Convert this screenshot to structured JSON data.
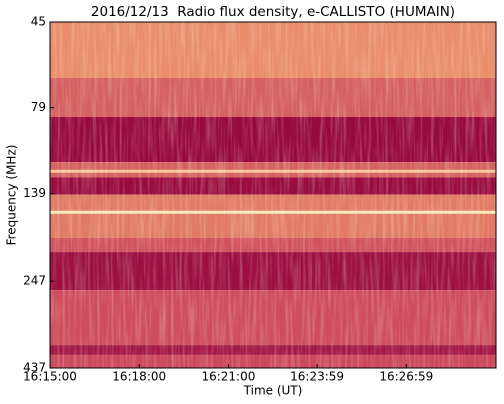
{
  "chart_data": {
    "type": "spectrogram",
    "title": "2016/12/13  Radio flux density, e-CALLISTO (HUMAIN)",
    "xlabel": "Time (UT)",
    "ylabel": "Frequency (MHz)",
    "xlim": [
      "16:15:00",
      "16:30:00"
    ],
    "xticks": [
      "16:15:00",
      "16:18:00",
      "16:21:00",
      "16:23:59",
      "16:26:59"
    ],
    "ylim": [
      45,
      437
    ],
    "yticks": [
      45,
      79,
      139,
      247,
      437
    ],
    "yscale": "log",
    "y_inverted": true,
    "colormap": [
      "#8e003b",
      "#c8405a",
      "#ee9a6e",
      "#fbeab8"
    ],
    "bands": [
      {
        "low": 45,
        "high": 65,
        "level": 0.62
      },
      {
        "low": 65,
        "high": 84,
        "level": 0.45
      },
      {
        "low": 84,
        "high": 113,
        "level": 0.05
      },
      {
        "low": 113,
        "high": 125,
        "level": 0.45
      },
      {
        "low": 125,
        "high": 140,
        "level": 0.06
      },
      {
        "low": 140,
        "high": 186,
        "level": 0.55
      },
      {
        "low": 186,
        "high": 204,
        "level": 0.4
      },
      {
        "low": 204,
        "high": 262,
        "level": 0.08
      },
      {
        "low": 262,
        "high": 376,
        "level": 0.38
      },
      {
        "low": 376,
        "high": 401,
        "level": 0.12
      },
      {
        "low": 401,
        "high": 437,
        "level": 0.36
      }
    ],
    "lines": [
      {
        "freq": 120,
        "level": 0.85
      },
      {
        "freq": 157,
        "level": 1
      }
    ]
  }
}
